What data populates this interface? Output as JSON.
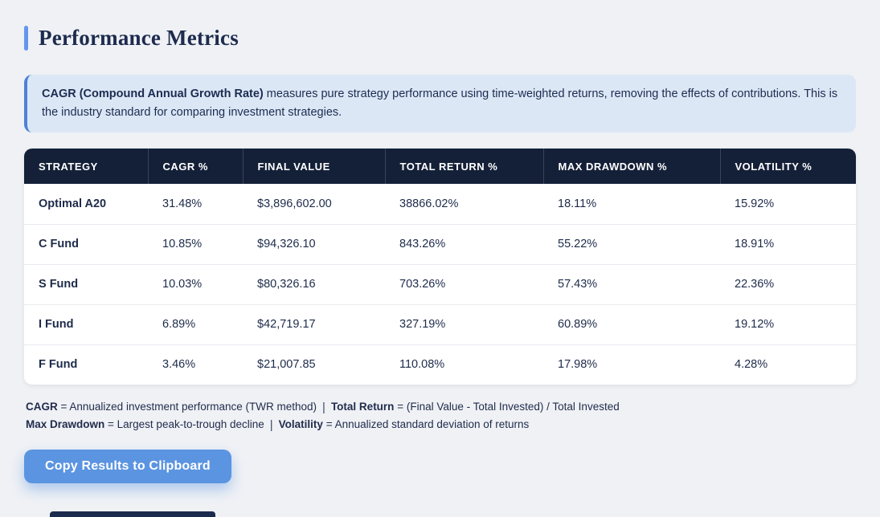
{
  "page": {
    "title": "Performance Metrics"
  },
  "info_box": {
    "bold_text": "CAGR (Compound Annual Growth Rate)",
    "text": " measures pure strategy performance using time-weighted returns, removing the effects of contributions. This is the industry standard for comparing investment strategies."
  },
  "table": {
    "columns": [
      "Strategy",
      "CAGR %",
      "Final Value",
      "Total Return %",
      "Max Drawdown %",
      "Volatility %"
    ],
    "row_keys": [
      "strategy",
      "cagr",
      "final_value",
      "total_return",
      "max_drawdown",
      "volatility"
    ],
    "rows": [
      {
        "strategy": "Optimal A20",
        "cagr": "31.48%",
        "final_value": "$3,896,602.00",
        "total_return": "38866.02%",
        "max_drawdown": "18.11%",
        "volatility": "15.92%"
      },
      {
        "strategy": "C Fund",
        "cagr": "10.85%",
        "final_value": "$94,326.10",
        "total_return": "843.26%",
        "max_drawdown": "55.22%",
        "volatility": "18.91%"
      },
      {
        "strategy": "S Fund",
        "cagr": "10.03%",
        "final_value": "$80,326.16",
        "total_return": "703.26%",
        "max_drawdown": "57.43%",
        "volatility": "22.36%"
      },
      {
        "strategy": "I Fund",
        "cagr": "6.89%",
        "final_value": "$42,719.17",
        "total_return": "327.19%",
        "max_drawdown": "60.89%",
        "volatility": "19.12%"
      },
      {
        "strategy": "F Fund",
        "cagr": "3.46%",
        "final_value": "$21,007.85",
        "total_return": "110.08%",
        "max_drawdown": "17.98%",
        "volatility": "4.28%"
      }
    ]
  },
  "footnotes": {
    "l1_b1": "CAGR",
    "l1_t1": " = Annualized investment performance (TWR method)",
    "l1_sep": "|",
    "l1_b2": "Total Return",
    "l1_t2": " = (Final Value - Total Invested) / Total Invested",
    "l2_b1": "Max Drawdown",
    "l2_t1": " = Largest peak-to-trough decline",
    "l2_sep": "|",
    "l2_b2": "Volatility",
    "l2_t2": " = Annualized standard deviation of returns"
  },
  "button": {
    "label": "Copy Results to Clipboard"
  },
  "colors": {
    "page_background": "#eff1f5",
    "accent_blue": "#6496ef",
    "title_text": "#1d2b4e",
    "info_background": "#dce7f6",
    "info_border": "#4d82d4",
    "table_header_background": "#142038",
    "table_header_text": "#ffffff",
    "row_separator": "#e9ebf1",
    "body_text": "#1d2b4a",
    "button_background": "#5b94e1",
    "button_text": "#ffffff"
  }
}
